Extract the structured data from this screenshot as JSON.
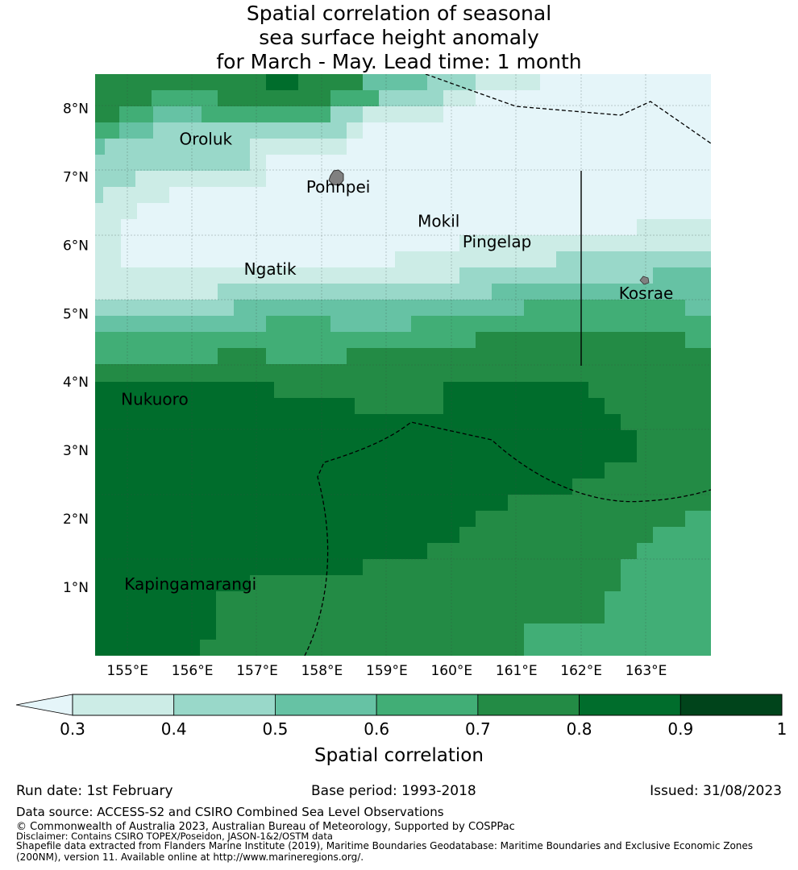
{
  "title": {
    "line1": "Spatial correlation of seasonal",
    "line2": "sea surface height anomaly",
    "line3": "for March - May. Lead time: 1 month"
  },
  "map": {
    "lon_range": [
      154.5,
      164.0
    ],
    "lat_range": [
      -0.0,
      8.5
    ],
    "lon_ticks": [
      "155°E",
      "156°E",
      "157°E",
      "158°E",
      "159°E",
      "160°E",
      "161°E",
      "162°E",
      "163°E"
    ],
    "lat_ticks": [
      "1°N",
      "2°N",
      "3°N",
      "4°N",
      "5°N",
      "6°N",
      "7°N",
      "8°N"
    ],
    "places": [
      {
        "name": "Oroluk",
        "lon": 155.8,
        "lat": 7.55
      },
      {
        "name": "Pohnpei",
        "lon": 158.25,
        "lat": 6.85
      },
      {
        "name": "Mokil",
        "lon": 159.8,
        "lat": 6.35
      },
      {
        "name": "Pingelap",
        "lon": 160.7,
        "lat": 6.05
      },
      {
        "name": "Ngatik",
        "lon": 157.2,
        "lat": 5.65
      },
      {
        "name": "Kosrae",
        "lon": 163.0,
        "lat": 5.3
      },
      {
        "name": "Nukuoro",
        "lon": 154.9,
        "lat": 3.75
      },
      {
        "name": "Kapingamarangi",
        "lon": 154.95,
        "lat": 1.05
      }
    ]
  },
  "colorbar": {
    "label": "Spatial correlation",
    "ticks": [
      "0.3",
      "0.4",
      "0.5",
      "0.6",
      "0.7",
      "0.8",
      "0.9",
      "1"
    ],
    "colors": [
      "#e5f5f9",
      "#ccece6",
      "#99d8c9",
      "#66c2a4",
      "#41ae76",
      "#238b45",
      "#006d2c",
      "#00441b"
    ]
  },
  "footer": {
    "run_date": "Run date: 1st February",
    "base_period": "Base period: 1993-2018",
    "issued": "Issued: 31/08/2023",
    "data_source": "Data source: ACCESS-S2 and CSIRO Combined Sea Level Observations",
    "copyright": "© Commonwealth of Australia 2023, Australian Bureau of Meteorology, Supported by COSPPac",
    "disclaimer": "Disclaimer: Contains CSIRO TOPEX/Poseidon, JASON-1&2/OSTM data",
    "shapefile1": "Shapefile data extracted from Flanders Marine Institute (2019), Maritime Boundaries Geodatabase: Maritime Boundaries and Exclusive Economic Zones",
    "shapefile2": "(200NM), version 11. Available online at http://www.marineregions.org/."
  }
}
